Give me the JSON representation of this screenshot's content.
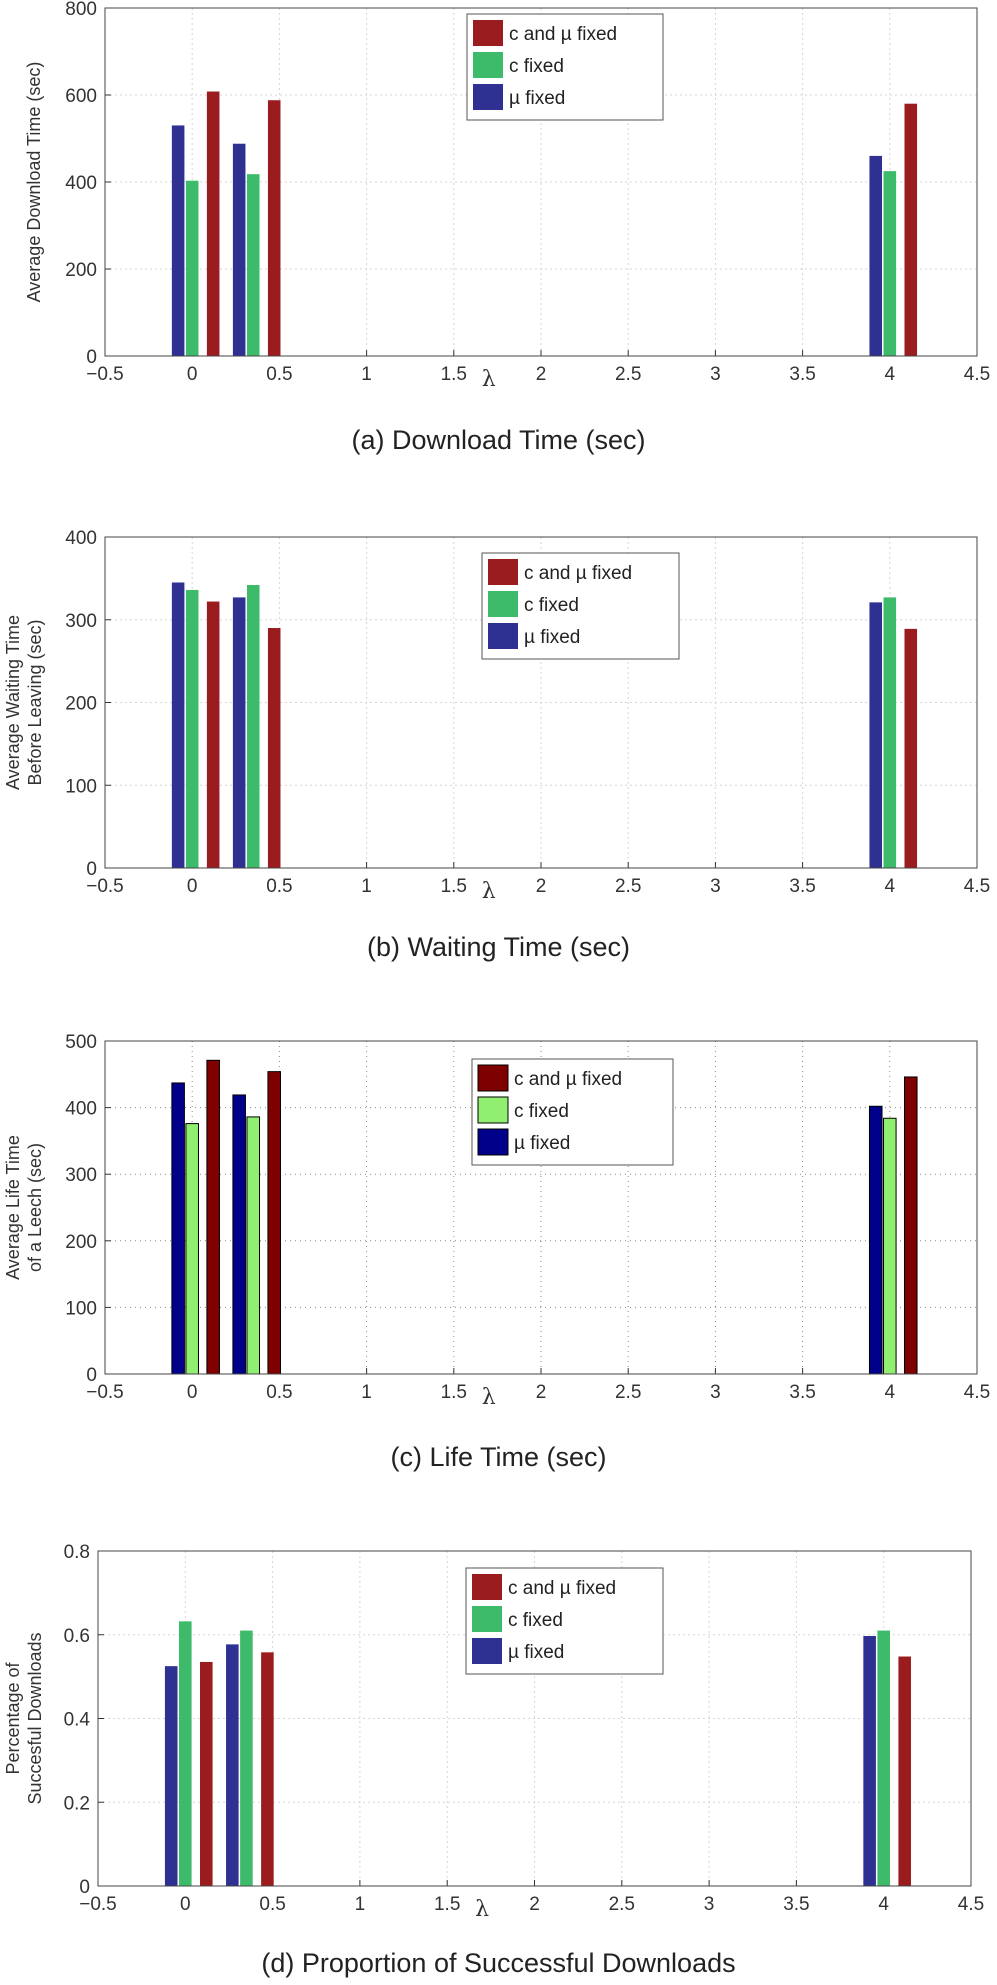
{
  "chart_data": [
    {
      "type": "bar",
      "caption": "(a)  Download Time (sec)",
      "ylabel": [
        "Average Download Time (sec)"
      ],
      "xlabel": "λ",
      "xlim": [
        -0.5,
        4.5
      ],
      "ylim": [
        0,
        800
      ],
      "xticks": [
        "−0.5",
        "0",
        "0.5",
        "1",
        "1.5",
        "2",
        "2.5",
        "3",
        "3.5",
        "4",
        "4.5"
      ],
      "yticks": [
        "0",
        "200",
        "400",
        "600",
        "800"
      ],
      "grid": "light-dotted",
      "legend_position": "top-center",
      "categories": [
        0,
        0.35,
        4
      ],
      "series": [
        {
          "name": "µ fixed",
          "color": "#2e3192",
          "values": [
            530,
            488,
            460
          ]
        },
        {
          "name": "c fixed",
          "color": "#3dbb6b",
          "values": [
            403,
            418,
            425
          ]
        },
        {
          "name": "c and  µ fixed",
          "color": "#9b1c1f",
          "values": [
            608,
            588,
            580
          ]
        }
      ],
      "legend": [
        "c and  µ fixed",
        "c fixed",
        "µ fixed"
      ]
    },
    {
      "type": "bar",
      "caption": "(b)  Waiting Time (sec)",
      "ylabel": [
        "Average Waiting Time",
        "Before Leaving (sec)"
      ],
      "xlabel": "λ",
      "xlim": [
        -0.5,
        4.5
      ],
      "ylim": [
        0,
        400
      ],
      "xticks": [
        "−0.5",
        "0",
        "0.5",
        "1",
        "1.5",
        "2",
        "2.5",
        "3",
        "3.5",
        "4",
        "4.5"
      ],
      "yticks": [
        "0",
        "100",
        "200",
        "300",
        "400"
      ],
      "grid": "light-dotted",
      "legend_position": "top-center-right",
      "categories": [
        0,
        0.35,
        4
      ],
      "series": [
        {
          "name": "µ fixed",
          "color": "#2e3192",
          "values": [
            345,
            327,
            321
          ]
        },
        {
          "name": "c fixed",
          "color": "#3dbb6b",
          "values": [
            336,
            342,
            327
          ]
        },
        {
          "name": "c and  µ fixed",
          "color": "#9b1c1f",
          "values": [
            322,
            290,
            289
          ]
        }
      ],
      "legend": [
        "c and  µ fixed",
        "c fixed",
        "µ fixed"
      ]
    },
    {
      "type": "bar",
      "caption": "(c)  Life Time (sec)",
      "ylabel": [
        "Average Life Time",
        "of a Leech  (sec)"
      ],
      "xlabel": "λ",
      "xlim": [
        -0.5,
        4.5
      ],
      "ylim": [
        0,
        500
      ],
      "xticks": [
        "−0.5",
        "0",
        "0.5",
        "1",
        "1.5",
        "2",
        "2.5",
        "3",
        "3.5",
        "4",
        "4.5"
      ],
      "yticks": [
        "0",
        "100",
        "200",
        "300",
        "400",
        "500"
      ],
      "grid": "dotted",
      "legend_position": "top-center-right",
      "categories": [
        0,
        0.35,
        4
      ],
      "series": [
        {
          "name": "µ fixed",
          "color": "#00008b",
          "values": [
            437,
            419,
            402
          ]
        },
        {
          "name": "c fixed",
          "color": "#90ee70",
          "values": [
            376,
            386,
            384
          ]
        },
        {
          "name": "c and µ fixed",
          "color": "#7f0000",
          "values": [
            471,
            454,
            446
          ]
        }
      ],
      "legend": [
        "c and µ fixed",
        "c fixed",
        "µ fixed"
      ]
    },
    {
      "type": "bar",
      "caption": "(d)  Proportion of Successful Downloads",
      "ylabel": [
        "Percentage of",
        "Succesful Downloads"
      ],
      "xlabel": "λ",
      "xlim": [
        -0.5,
        4.5
      ],
      "ylim": [
        0,
        0.8
      ],
      "xticks": [
        "−0.5",
        "0",
        "0.5",
        "1",
        "1.5",
        "2",
        "2.5",
        "3",
        "3.5",
        "4",
        "4.5"
      ],
      "yticks": [
        "0",
        "0.2",
        "0.4",
        "0.6",
        "0.8"
      ],
      "grid": "light-dotted",
      "legend_position": "top-center",
      "categories": [
        0,
        0.35,
        4
      ],
      "series": [
        {
          "name": "µ fixed",
          "color": "#2e3192",
          "values": [
            0.525,
            0.577,
            0.597
          ]
        },
        {
          "name": "c fixed",
          "color": "#3dbb6b",
          "values": [
            0.632,
            0.61,
            0.61
          ]
        },
        {
          "name": "c and  µ fixed",
          "color": "#9b1c1f",
          "values": [
            0.535,
            0.558,
            0.548
          ]
        }
      ],
      "legend": [
        "c and  µ fixed",
        "c fixed",
        "µ fixed"
      ]
    }
  ]
}
